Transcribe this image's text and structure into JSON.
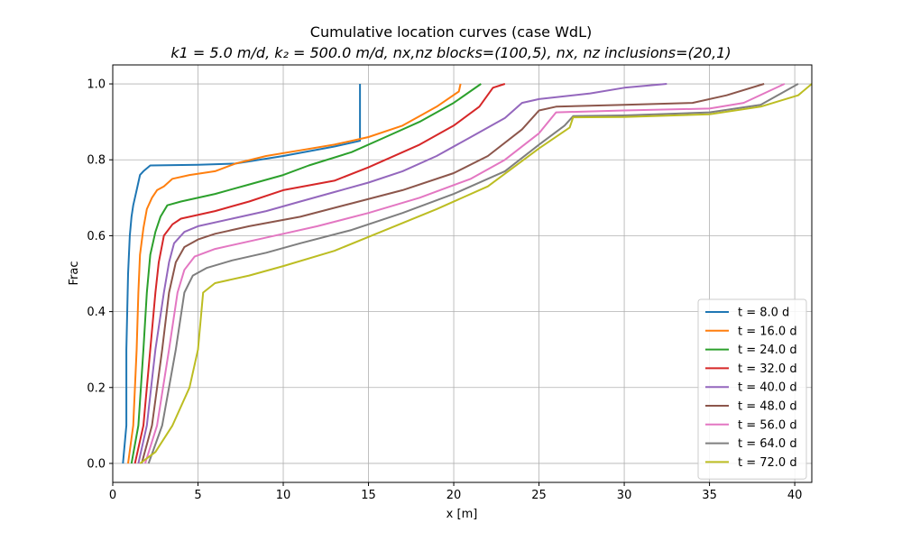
{
  "chart_data": {
    "type": "line",
    "title": "Cumulative location curves (case WdL)",
    "subtitle": "k1 = 5.0 m/d, k₂ = 500.0 m/d, nx,nz blocks=(100,5), nx, nz inclusions=(20,1)",
    "xlabel": "x [m]",
    "ylabel": "Frac",
    "xlim": [
      0,
      41
    ],
    "ylim": [
      -0.05,
      1.05
    ],
    "xticks": [
      0,
      5,
      10,
      15,
      20,
      25,
      30,
      35,
      40
    ],
    "yticks": [
      0.0,
      0.2,
      0.4,
      0.6,
      0.8,
      1.0
    ],
    "grid": true,
    "legend_position": "bottom-right",
    "series": [
      {
        "name": "t = 8.0 d",
        "color": "#1f77b4",
        "x": [
          0.6,
          0.8,
          0.8,
          0.9,
          1.0,
          1.1,
          1.2,
          1.4,
          1.6,
          1.8,
          2.2,
          5,
          7.2,
          10,
          13,
          14.5,
          14.5
        ],
        "y": [
          0.0,
          0.1,
          0.3,
          0.5,
          0.6,
          0.65,
          0.68,
          0.72,
          0.76,
          0.77,
          0.785,
          0.787,
          0.79,
          0.81,
          0.835,
          0.85,
          1.0
        ]
      },
      {
        "name": "t = 16.0 d",
        "color": "#ff7f0e",
        "x": [
          0.9,
          1.2,
          1.4,
          1.5,
          1.6,
          1.8,
          2.0,
          2.3,
          2.6,
          3.0,
          3.5,
          4.5,
          6,
          7.2,
          9,
          11,
          13,
          15,
          17,
          19,
          20.3,
          20.4
        ],
        "y": [
          0.0,
          0.1,
          0.3,
          0.45,
          0.55,
          0.62,
          0.67,
          0.7,
          0.72,
          0.73,
          0.75,
          0.76,
          0.77,
          0.79,
          0.81,
          0.825,
          0.84,
          0.86,
          0.89,
          0.94,
          0.98,
          1.0
        ]
      },
      {
        "name": "t = 24.0 d",
        "color": "#2ca02c",
        "x": [
          1.1,
          1.5,
          1.8,
          2.0,
          2.2,
          2.5,
          2.8,
          3.2,
          4,
          6,
          8,
          10,
          11.5,
          14,
          16,
          18,
          20,
          21.6
        ],
        "y": [
          0.0,
          0.1,
          0.3,
          0.45,
          0.55,
          0.61,
          0.65,
          0.68,
          0.69,
          0.71,
          0.735,
          0.76,
          0.785,
          0.82,
          0.86,
          0.9,
          0.95,
          1.0
        ]
      },
      {
        "name": "t = 32.0 d",
        "color": "#d62728",
        "x": [
          1.3,
          1.8,
          2.2,
          2.5,
          2.7,
          3.0,
          3.5,
          4,
          6,
          8,
          10,
          13,
          15,
          18,
          20,
          21.5,
          22.3,
          23.0
        ],
        "y": [
          0.0,
          0.1,
          0.3,
          0.45,
          0.53,
          0.6,
          0.63,
          0.645,
          0.665,
          0.69,
          0.72,
          0.745,
          0.78,
          0.84,
          0.89,
          0.94,
          0.99,
          1.0
        ]
      },
      {
        "name": "t = 40.0 d",
        "color": "#9467bd",
        "x": [
          1.5,
          2.0,
          2.5,
          3.0,
          3.3,
          3.6,
          4.2,
          5,
          7,
          9,
          11,
          13,
          15,
          17,
          19,
          21,
          23,
          24,
          25,
          28,
          30,
          32.5
        ],
        "y": [
          0.0,
          0.1,
          0.3,
          0.45,
          0.53,
          0.58,
          0.61,
          0.625,
          0.645,
          0.665,
          0.69,
          0.715,
          0.74,
          0.77,
          0.81,
          0.86,
          0.91,
          0.95,
          0.96,
          0.975,
          0.99,
          1.0
        ]
      },
      {
        "name": "t = 48.0 d",
        "color": "#8c564b",
        "x": [
          1.7,
          2.3,
          2.9,
          3.3,
          3.7,
          4.2,
          5,
          6,
          8,
          11,
          14,
          17,
          20,
          22,
          24,
          25,
          26,
          30,
          34,
          36,
          38.2
        ],
        "y": [
          0.0,
          0.1,
          0.3,
          0.45,
          0.53,
          0.57,
          0.59,
          0.605,
          0.625,
          0.65,
          0.685,
          0.72,
          0.765,
          0.81,
          0.88,
          0.93,
          0.94,
          0.945,
          0.95,
          0.97,
          1.0
        ]
      },
      {
        "name": "t = 56.0 d",
        "color": "#e377c2",
        "x": [
          1.9,
          2.6,
          3.3,
          3.8,
          4.2,
          4.8,
          6,
          8,
          10,
          12,
          15,
          18,
          21,
          23,
          25,
          26,
          30,
          35,
          37,
          39.4
        ],
        "y": [
          0.0,
          0.1,
          0.3,
          0.45,
          0.51,
          0.545,
          0.565,
          0.585,
          0.605,
          0.625,
          0.66,
          0.7,
          0.75,
          0.8,
          0.87,
          0.925,
          0.93,
          0.935,
          0.95,
          1.0
        ]
      },
      {
        "name": "t = 64.0 d",
        "color": "#7f7f7f",
        "x": [
          2.1,
          2.9,
          3.7,
          4.2,
          4.7,
          5.5,
          7,
          9,
          11,
          14,
          17,
          20,
          23,
          25,
          26.5,
          27,
          30,
          35,
          38,
          40.2
        ],
        "y": [
          0.0,
          0.1,
          0.3,
          0.45,
          0.495,
          0.515,
          0.535,
          0.555,
          0.58,
          0.615,
          0.66,
          0.71,
          0.77,
          0.84,
          0.89,
          0.915,
          0.917,
          0.925,
          0.945,
          1.0
        ]
      },
      {
        "name": "t = 72.0 d",
        "color": "#bcbd22",
        "x": [
          1.6,
          2.5,
          3.5,
          4.5,
          5.0,
          5.3,
          6,
          8,
          10,
          13,
          16,
          19,
          22,
          25,
          26.8,
          27,
          30,
          35,
          38,
          40.2,
          41.0
        ],
        "y": [
          0.0,
          0.03,
          0.1,
          0.2,
          0.3,
          0.45,
          0.475,
          0.495,
          0.52,
          0.56,
          0.615,
          0.67,
          0.73,
          0.83,
          0.885,
          0.912,
          0.913,
          0.92,
          0.94,
          0.97,
          1.0
        ]
      }
    ]
  }
}
